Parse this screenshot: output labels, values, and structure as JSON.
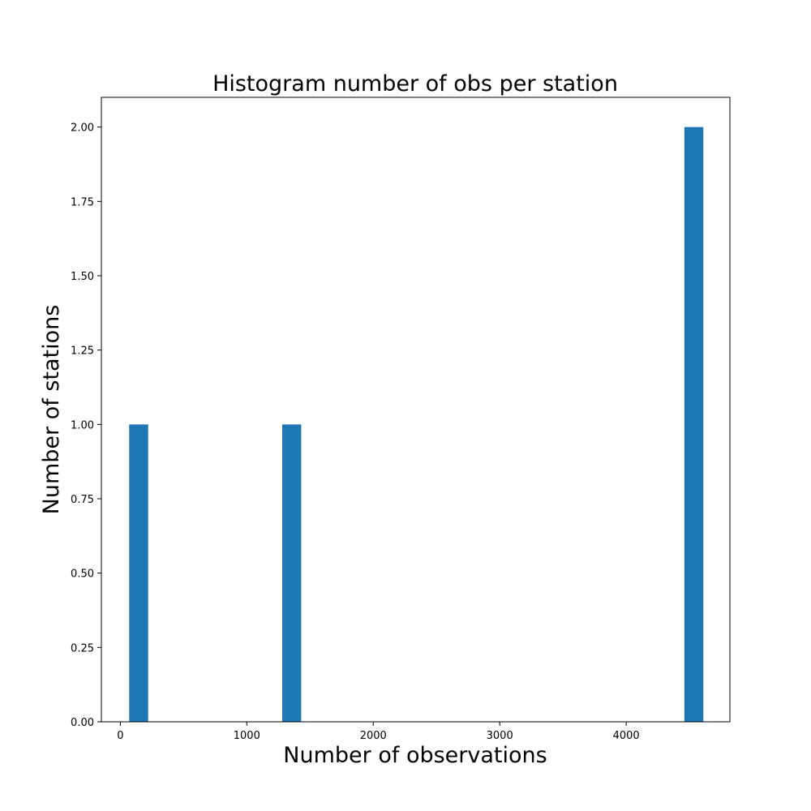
{
  "chart_data": {
    "type": "bar",
    "title": "Histogram number of obs per station",
    "xlabel": "Number of observations",
    "ylabel": "Number of stations",
    "xlim": [
      -150,
      4820
    ],
    "ylim": [
      0,
      2.1
    ],
    "x_ticks": [
      0,
      1000,
      2000,
      3000,
      4000
    ],
    "y_ticks": [
      0.0,
      0.25,
      0.5,
      0.75,
      1.0,
      1.25,
      1.5,
      1.75,
      2.0
    ],
    "x_tick_labels": [
      "0",
      "1000",
      "2000",
      "3000",
      "4000"
    ],
    "y_tick_labels": [
      "0.00",
      "0.25",
      "0.50",
      "0.75",
      "1.00",
      "1.25",
      "1.50",
      "1.75",
      "2.00"
    ],
    "bars": [
      {
        "x_start": 70,
        "x_end": 220,
        "value": 1
      },
      {
        "x_start": 1280,
        "x_end": 1430,
        "value": 1
      },
      {
        "x_start": 4460,
        "x_end": 4610,
        "value": 2
      }
    ],
    "bar_color": "#1f77b4",
    "grid": false
  }
}
